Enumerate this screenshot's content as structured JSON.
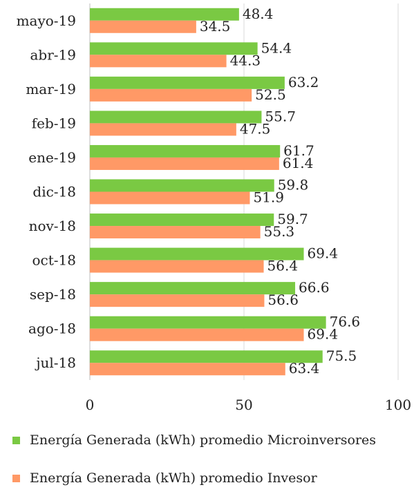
{
  "chart_data": {
    "type": "bar",
    "orientation": "horizontal",
    "categories": [
      "jul-18",
      "ago-18",
      "sep-18",
      "oct-18",
      "nov-18",
      "dic-18",
      "ene-19",
      "feb-19",
      "mar-19",
      "abr-19",
      "mayo-19"
    ],
    "series": [
      {
        "name": "Energía Generada (kWh) promedio Microinversores",
        "color": "#7ac943",
        "values": [
          75.5,
          76.6,
          66.6,
          69.4,
          59.7,
          59.8,
          61.7,
          55.7,
          63.2,
          54.4,
          48.4
        ]
      },
      {
        "name": "Energía Generada (kWh) promedio Invesor",
        "color": "#ff9966",
        "values": [
          63.4,
          69.4,
          56.6,
          56.4,
          55.3,
          51.9,
          61.4,
          47.5,
          52.5,
          44.3,
          34.5
        ]
      }
    ],
    "xlim": [
      0,
      100
    ],
    "xticks": [
      0,
      50,
      100
    ],
    "grid": true,
    "legend": "bottom"
  }
}
